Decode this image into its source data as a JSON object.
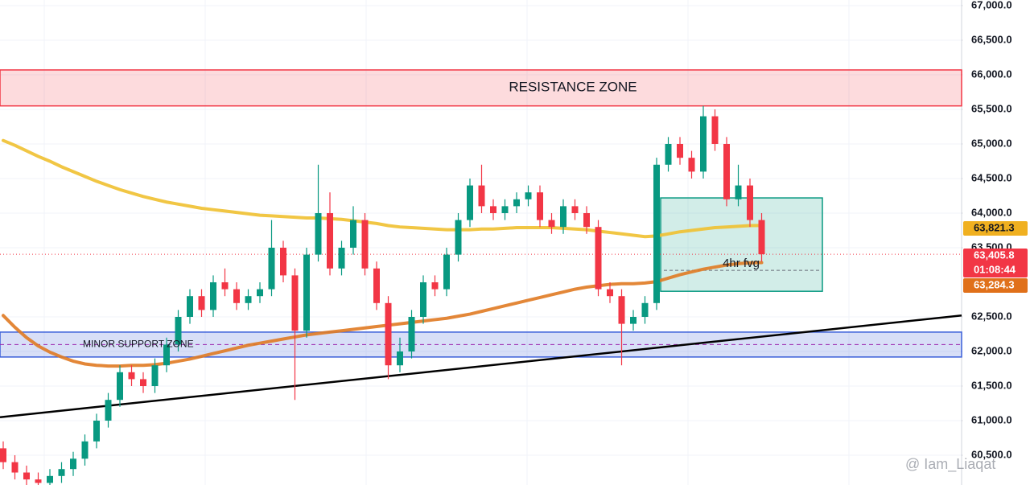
{
  "chart_data": {
    "type": "candlestick",
    "ylim": [
      60070,
      67081
    ],
    "yticks": [
      {
        "value": 60500,
        "label": "60,500.0"
      },
      {
        "value": 61000,
        "label": "61,000.0"
      },
      {
        "value": 61500,
        "label": "61,500.0"
      },
      {
        "value": 62000,
        "label": "62,000.0"
      },
      {
        "value": 62500,
        "label": "62,500.0"
      },
      {
        "value": 63500,
        "label": "63,500.0"
      },
      {
        "value": 64000,
        "label": "64,000.0"
      },
      {
        "value": 64500,
        "label": "64,500.0"
      },
      {
        "value": 65000,
        "label": "65,000.0"
      },
      {
        "value": 65500,
        "label": "65,500.0"
      },
      {
        "value": 66000,
        "label": "66,000.0"
      },
      {
        "value": 66500,
        "label": "66,500.0"
      },
      {
        "value": 67000,
        "label": "67,000.0"
      }
    ],
    "up_color": "#089981",
    "down_color": "#f23645",
    "open": [
      60600,
      60400,
      60250,
      60150,
      60100,
      60200,
      60300,
      60450,
      60700,
      61000,
      61300,
      61700,
      61600,
      61500,
      61800,
      62100,
      62500,
      62800,
      62600,
      63000,
      62900,
      62700,
      62800,
      62900,
      63500,
      63100,
      62300,
      63400,
      64000,
      63200,
      63500,
      63900,
      63200,
      62700,
      61800,
      62000,
      62500,
      63000,
      62900,
      63400,
      63900,
      64400,
      64100,
      64000,
      64100,
      64200,
      64300,
      63900,
      63800,
      64100,
      64000,
      63800,
      62900,
      62800,
      62400,
      62500,
      62700,
      64700,
      65000,
      64800,
      64600,
      65400,
      65000,
      64200,
      64400,
      63900
    ],
    "high": [
      60700,
      60500,
      60350,
      60250,
      60300,
      60400,
      60550,
      60800,
      61100,
      61400,
      61800,
      61800,
      61700,
      61900,
      62200,
      62600,
      62900,
      62900,
      63100,
      63200,
      63000,
      62900,
      63000,
      63900,
      63600,
      63200,
      63500,
      64700,
      64300,
      63600,
      64100,
      64000,
      63300,
      62800,
      62200,
      62600,
      63100,
      63100,
      63500,
      64000,
      64500,
      64700,
      64200,
      64200,
      64300,
      64400,
      64400,
      64000,
      64200,
      64200,
      64100,
      63900,
      63000,
      62900,
      62600,
      62800,
      64800,
      65100,
      65100,
      64900,
      65550,
      65500,
      65100,
      64700,
      64500,
      64000
    ],
    "low": [
      60300,
      60150,
      60050,
      60000,
      60000,
      60100,
      60200,
      60350,
      60600,
      60900,
      61200,
      61500,
      61400,
      61400,
      61700,
      62000,
      62400,
      62500,
      62500,
      62800,
      62600,
      62600,
      62700,
      62800,
      63000,
      61300,
      62200,
      63300,
      63100,
      63100,
      63400,
      63100,
      62600,
      61600,
      61700,
      61900,
      62400,
      62800,
      62800,
      63300,
      63800,
      64000,
      63900,
      63900,
      64000,
      64100,
      63800,
      63700,
      63700,
      63900,
      63700,
      62800,
      62700,
      61800,
      62300,
      62400,
      62600,
      64600,
      64700,
      64500,
      64500,
      64900,
      64100,
      64100,
      63800,
      63300
    ],
    "close": [
      60400,
      60250,
      60150,
      60100,
      60200,
      60300,
      60450,
      60700,
      61000,
      61300,
      61700,
      61600,
      61500,
      61800,
      62100,
      62500,
      62800,
      62600,
      63000,
      62900,
      62700,
      62800,
      62900,
      63500,
      63100,
      62300,
      63400,
      64000,
      63200,
      63500,
      63900,
      63200,
      62700,
      61800,
      62000,
      62500,
      63000,
      62900,
      63400,
      63900,
      64400,
      64100,
      64000,
      64100,
      64200,
      64300,
      63900,
      63800,
      64100,
      64000,
      63800,
      62900,
      62800,
      62400,
      62500,
      62700,
      64700,
      65000,
      64800,
      64600,
      65400,
      65000,
      64200,
      64400,
      63900,
      63406
    ],
    "series": [
      {
        "color": "#f0c030",
        "values": [
          65050,
          64980,
          64900,
          64820,
          64750,
          64670,
          64600,
          64530,
          64460,
          64400,
          64340,
          64290,
          64240,
          64200,
          64160,
          64130,
          64100,
          64070,
          64050,
          64030,
          64010,
          63990,
          63970,
          63960,
          63950,
          63940,
          63930,
          63930,
          63920,
          63910,
          63890,
          63870,
          63850,
          63820,
          63800,
          63790,
          63780,
          63770,
          63760,
          63760,
          63760,
          63770,
          63770,
          63780,
          63790,
          63790,
          63790,
          63790,
          63780,
          63770,
          63760,
          63740,
          63720,
          63700,
          63680,
          63660,
          63670,
          63700,
          63730,
          63750,
          63770,
          63790,
          63800,
          63810,
          63820,
          63821.3
        ]
      },
      {
        "color": "#e07a22",
        "values": [
          62520,
          62350,
          62200,
          62080,
          61990,
          61920,
          61860,
          61820,
          61800,
          61790,
          61790,
          61800,
          61800,
          61810,
          61830,
          61860,
          61890,
          61930,
          61970,
          62010,
          62050,
          62090,
          62120,
          62150,
          62180,
          62210,
          62240,
          62260,
          62280,
          62300,
          62320,
          62340,
          62360,
          62380,
          62400,
          62420,
          62440,
          62460,
          62480,
          62510,
          62540,
          62580,
          62620,
          62660,
          62700,
          62740,
          62780,
          62820,
          62860,
          62900,
          62930,
          62950,
          62970,
          62980,
          62980,
          62990,
          63010,
          63060,
          63110,
          63150,
          63190,
          63220,
          63250,
          63270,
          63280,
          63284.3
        ]
      }
    ],
    "zones": [
      {
        "label": "RESISTANCE ZONE",
        "low": 65550,
        "high": 66070,
        "color": "#f23645"
      },
      {
        "label": "MINOR SUPPORT ZONE",
        "low": 61920,
        "high": 62280,
        "color": "#3a5fd9"
      },
      {
        "label": "4hr fvg",
        "low": 62870,
        "high": 64220,
        "color": "#089981"
      }
    ],
    "trendline": [
      61050,
      62520
    ],
    "price_labels": [
      {
        "value": 63821.3,
        "label": "63,821.3",
        "color": "#f0b020"
      },
      {
        "value": 63405.8,
        "label": "63,405.8",
        "color": "#f23645"
      },
      {
        "value": 63284.3,
        "label": "63,284.3",
        "color": "#e0701a"
      }
    ],
    "countdown": "01:08:44",
    "watermark": "@ Iam_Liaqat"
  }
}
